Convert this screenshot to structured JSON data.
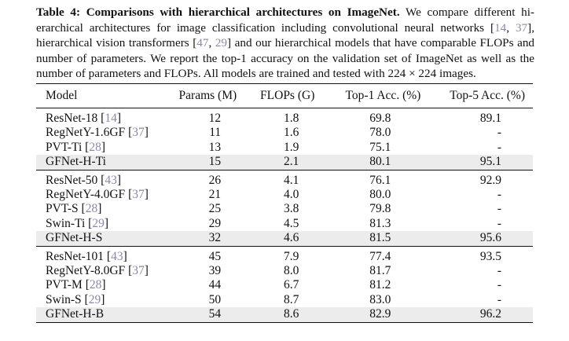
{
  "caption": {
    "label": "Table 4:",
    "title": "Comparisons with hierarchical architectures on ImageNet.",
    "part1": "We compare different hi-erarchical architectures for image classification including convolutional neural networks [",
    "ref1a": "14",
    "sep1": ", ",
    "ref1b": "37",
    "part2": "], hierarchical vision transformers [",
    "ref2a": "47",
    "sep2": ", ",
    "ref2b": "29",
    "part3": "] and our hierarchical models that have comparable FLOPs and number of parameters. We report the top-1 accuracy on the validation set of ImageNet as well as the number of parameters and FLOPs. All models are trained and tested with 224 × 224 images."
  },
  "table": {
    "headers": [
      "Model",
      "Params (M)",
      "FLOPs (G)",
      "Top-1 Acc. (%)",
      "Top-5 Acc. (%)"
    ],
    "groups": [
      {
        "rows": [
          {
            "name": "ResNet-18",
            "ref": "14",
            "params": "12",
            "flops": "1.8",
            "top1": "69.8",
            "top5": "89.1",
            "highlight": false
          },
          {
            "name": "RegNetY-1.6GF",
            "ref": "37",
            "params": "11",
            "flops": "1.6",
            "top1": "78.0",
            "top5": "-",
            "highlight": false
          },
          {
            "name": "PVT-Ti",
            "ref": "28",
            "params": "13",
            "flops": "1.9",
            "top1": "75.1",
            "top5": "-",
            "highlight": false
          },
          {
            "name": "GFNet-H-Ti",
            "ref": "",
            "params": "15",
            "flops": "2.1",
            "top1": "80.1",
            "top5": "95.1",
            "highlight": true
          }
        ]
      },
      {
        "rows": [
          {
            "name": "ResNet-50",
            "ref": "43",
            "params": "26",
            "flops": "4.1",
            "top1": "76.1",
            "top5": "92.9",
            "highlight": false
          },
          {
            "name": "RegNetY-4.0GF",
            "ref": "37",
            "params": "21",
            "flops": "4.0",
            "top1": "80.0",
            "top5": "-",
            "highlight": false
          },
          {
            "name": "PVT-S",
            "ref": "28",
            "params": "25",
            "flops": "3.8",
            "top1": "79.8",
            "top5": "-",
            "highlight": false
          },
          {
            "name": "Swin-Ti",
            "ref": "29",
            "params": "29",
            "flops": "4.5",
            "top1": "81.3",
            "top5": "-",
            "highlight": false
          },
          {
            "name": "GFNet-H-S",
            "ref": "",
            "params": "32",
            "flops": "4.6",
            "top1": "81.5",
            "top5": "95.6",
            "highlight": true
          }
        ]
      },
      {
        "rows": [
          {
            "name": "ResNet-101",
            "ref": "43",
            "params": "45",
            "flops": "7.9",
            "top1": "77.4",
            "top5": "93.5",
            "highlight": false
          },
          {
            "name": "RegNetY-8.0GF",
            "ref": "37",
            "params": "39",
            "flops": "8.0",
            "top1": "81.7",
            "top5": "-",
            "highlight": false
          },
          {
            "name": "PVT-M",
            "ref": "28",
            "params": "44",
            "flops": "6.7",
            "top1": "81.2",
            "top5": "-",
            "highlight": false
          },
          {
            "name": "Swin-S",
            "ref": "29",
            "params": "50",
            "flops": "8.7",
            "top1": "83.0",
            "top5": "-",
            "highlight": false
          },
          {
            "name": "GFNet-H-B",
            "ref": "",
            "params": "54",
            "flops": "8.6",
            "top1": "82.9",
            "top5": "96.2",
            "highlight": true
          }
        ]
      }
    ]
  }
}
